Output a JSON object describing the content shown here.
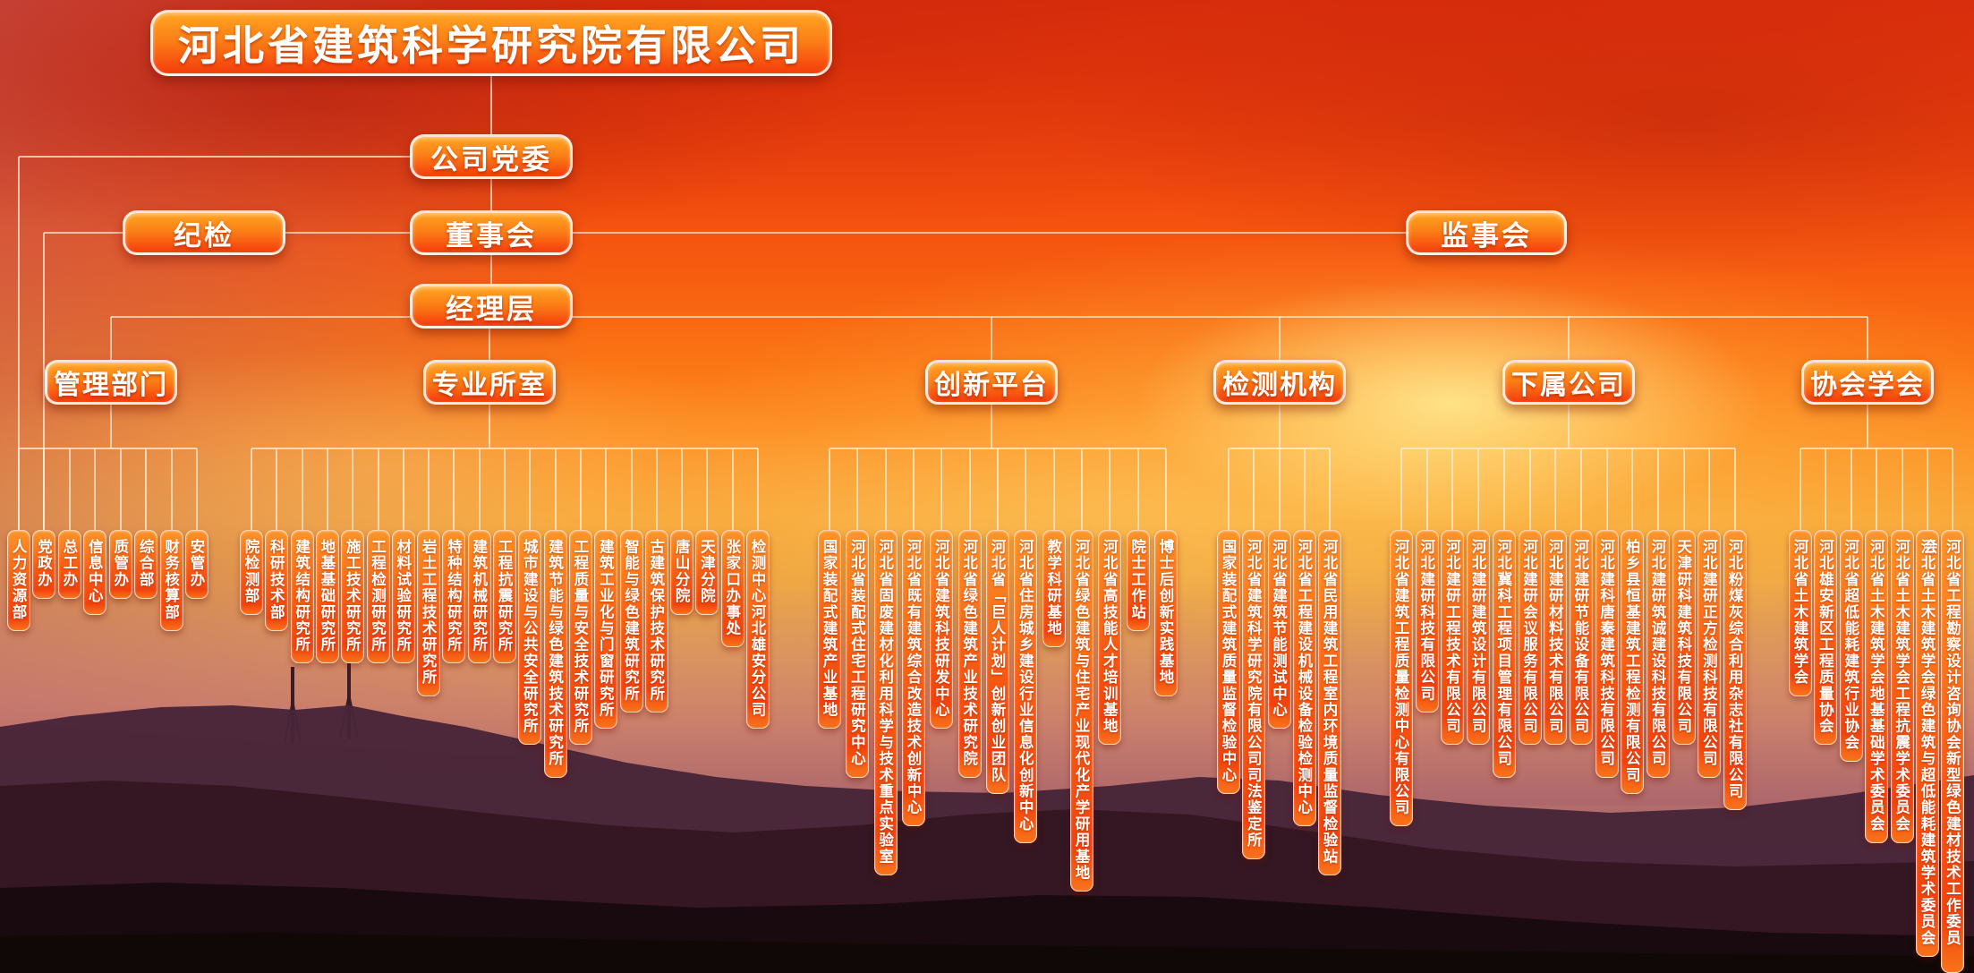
{
  "title": "河北省建筑科学研究院有限公司",
  "nodes": {
    "party_committee": "公司党委",
    "discipline_inspection": "纪检",
    "board_of_directors": "董事会",
    "board_of_supervisors": "监事会",
    "management_level": "经理层"
  },
  "groups": [
    {
      "id": "management-departments",
      "label": "管理部门",
      "children": [
        "人力资源部",
        "党政办",
        "总工办",
        "信息中心",
        "质管办",
        "综合部",
        "财务核算部",
        "安管办"
      ]
    },
    {
      "id": "professional-institutes",
      "label": "专业所室",
      "children": [
        "院检测部",
        "科研技术部",
        "建筑结构研究所",
        "地基基础研究所",
        "施工技术研究所",
        "工程检测研究所",
        "材料试验研究所",
        "岩土工程技术研究所",
        "特种结构研究所",
        "建筑机械研究所",
        "工程抗震研究所",
        "城市建设与公共安全研究所",
        "建筑节能与绿色建筑技术研究所",
        "工程质量与安全技术研究所",
        "建筑工业化与门窗研究所",
        "智能与绿色建筑研究所",
        "古建筑保护技术研究所",
        "唐山分院",
        "天津分院",
        "张家口办事处",
        "检测中心河北雄安分公司"
      ]
    },
    {
      "id": "innovation-platforms",
      "label": "创新平台",
      "children": [
        "国家装配式建筑产业基地",
        "河北省装配式住宅工程研究中心",
        "河北省固废建材化利用科学与技术重点实验室",
        "河北省既有建筑综合改造技术创新中心",
        "河北省建筑科技研发中心",
        "河北省绿色建筑产业技术研究院",
        "河北省「巨人计划」创新创业团队",
        "河北省住房城乡建设行业信息化创新中心",
        "教学科研基地",
        "河北省绿色建筑与住宅产业现代化产学研用基地",
        "河北省高技能人才培训基地",
        "院士工作站",
        "博士后创新实践基地"
      ]
    },
    {
      "id": "testing-institutions",
      "label": "检测机构",
      "children": [
        "国家装配式建筑质量监督检验中心",
        "河北省建筑科学研究院有限公司司法鉴定所",
        "河北省建筑节能测试中心",
        "河北省工程建设机械设备检验检测中心",
        "河北省民用建筑工程室内环境质量监督检验站"
      ]
    },
    {
      "id": "subsidiary-companies",
      "label": "下属公司",
      "children": [
        "河北省建筑工程质量检测中心有限公司",
        "河北建研科技有限公司",
        "河北建研工程技术有限公司",
        "河北建研建筑设计有限公司",
        "河北冀科工程项目管理有限公司",
        "河北建研会议服务有限公司",
        "河北建研材料技术有限公司",
        "河北建研节能设备有限公司",
        "河北建科唐秦建筑科技有限公司",
        "柏乡县恒基建筑工程检测有限公司",
        "河北建研筑诚建设科技有限公司",
        "天津研科建筑科技有限公司",
        "河北建研正方检测科技有限公司",
        "河北粉煤灰综合利用杂志社有限公司"
      ]
    },
    {
      "id": "associations",
      "label": "协会学会",
      "children": [
        "河北省土木建筑学会",
        "河北雄安新区工程质量协会",
        "河北省超低能耗建筑行业协会",
        "河北省土木建筑学会地基基础学术委员会",
        "河北省土木建筑学会工程抗震学术委员会",
        "河北省土木建筑学会绿色建筑与超低能耗建筑学术委员会",
        "河北省工程勘察设计咨询协会新型绿色建材技术工作委员会"
      ]
    }
  ],
  "colors": {
    "box_gradient_top": "#ffa522",
    "box_gradient_bottom": "#f53c0c",
    "connector_line": "#ffeed8",
    "text": "#ffffff"
  }
}
